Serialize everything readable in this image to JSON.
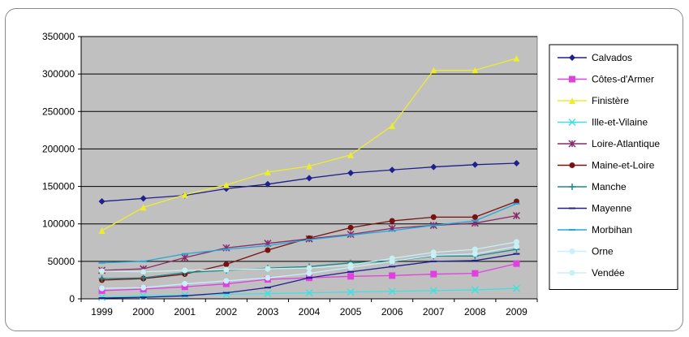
{
  "chart_data": {
    "type": "line",
    "title": "",
    "xlabel": "",
    "ylabel": "",
    "x": [
      "1999",
      "2000",
      "2001",
      "2002",
      "2003",
      "2004",
      "2005",
      "2006",
      "2007",
      "2008",
      "2009"
    ],
    "ylim": [
      0,
      350000
    ],
    "yticks": [
      "0",
      "50000",
      "100000",
      "150000",
      "200000",
      "250000",
      "300000",
      "350000"
    ],
    "grid": "horizontal",
    "legend_position": "right",
    "plot_background": "#c0c0c0",
    "series": [
      {
        "name": "Calvados",
        "color": "#1f1f8f",
        "marker": "diamond",
        "values": [
          130000,
          134000,
          138000,
          147000,
          153000,
          161000,
          168000,
          172000,
          176000,
          179000,
          181000
        ]
      },
      {
        "name": "Côtes-d'Armer",
        "color": "#e040e0",
        "marker": "square",
        "values": [
          11000,
          13000,
          16000,
          20000,
          26000,
          28000,
          30000,
          31000,
          33000,
          34000,
          47000
        ]
      },
      {
        "name": "Finistère",
        "color": "#ecec30",
        "marker": "triangle",
        "values": [
          91000,
          122000,
          139000,
          152000,
          169000,
          177000,
          192000,
          231000,
          305000,
          305000,
          321000
        ]
      },
      {
        "name": "Ille-et-Vilaine",
        "color": "#40e0e0",
        "marker": "x",
        "values": [
          2000,
          4000,
          5000,
          6000,
          7000,
          8000,
          9000,
          10000,
          11000,
          12000,
          14000
        ]
      },
      {
        "name": "Loire-Atlantique",
        "color": "#8a2a6a",
        "marker": "star",
        "values": [
          38000,
          40000,
          55000,
          68000,
          74000,
          80000,
          86000,
          94000,
          98000,
          101000,
          111000
        ]
      },
      {
        "name": "Maine-et-Loire",
        "color": "#7a1010",
        "marker": "circle",
        "values": [
          25000,
          27000,
          33000,
          46000,
          65000,
          81000,
          95000,
          104000,
          109000,
          109000,
          130000
        ]
      },
      {
        "name": "Manche",
        "color": "#208a8a",
        "marker": "plus",
        "values": [
          27000,
          28000,
          35000,
          38000,
          41000,
          43000,
          48000,
          50000,
          57000,
          57000,
          66000
        ]
      },
      {
        "name": "Mayenne",
        "color": "#1f1f8f",
        "marker": "dash",
        "values": [
          1000,
          2000,
          4000,
          8000,
          15000,
          28000,
          36000,
          43000,
          50000,
          51000,
          60000
        ]
      },
      {
        "name": "Morbihan",
        "color": "#20a8d8",
        "marker": "dash",
        "values": [
          48000,
          50000,
          60000,
          66000,
          71000,
          79000,
          85000,
          91000,
          98000,
          104000,
          127000
        ]
      },
      {
        "name": "Orne",
        "color": "#c8f0ff",
        "marker": "circle",
        "values": [
          14000,
          15000,
          20000,
          24000,
          28000,
          34000,
          42000,
          50000,
          58000,
          60000,
          70000
        ]
      },
      {
        "name": "Vendée",
        "color": "#c8f0f0",
        "marker": "circle",
        "values": [
          37000,
          36000,
          38000,
          39000,
          40000,
          41000,
          45000,
          54000,
          62000,
          66000,
          76000
        ]
      }
    ]
  }
}
